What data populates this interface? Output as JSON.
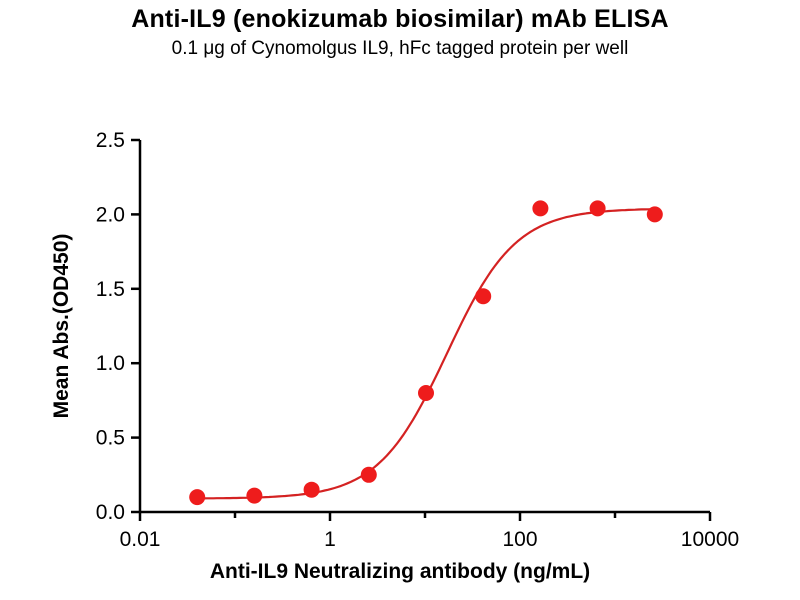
{
  "header": {
    "title": "Anti-IL9 (enokizumab biosimilar) mAb ELISA",
    "subtitle": "0.1 μg of Cynomolgus IL9, hFc tagged protein per well"
  },
  "chart_data": {
    "type": "scatter",
    "title": "Anti-IL9 (enokizumab biosimilar) mAb ELISA",
    "subtitle": "0.1 μg of Cynomolgus IL9, hFc tagged protein per well",
    "xlabel": "Anti-IL9 Neutralizing antibody (ng/mL)",
    "ylabel": "Mean Abs.(OD450)",
    "x_scale": "log10",
    "xlim": [
      0.01,
      10000
    ],
    "ylim": [
      0.0,
      2.5
    ],
    "grid": false,
    "legend": false,
    "x": [
      0.04,
      0.16,
      0.64,
      2.56,
      10.24,
      40.96,
      163.84,
      655.36,
      2621.44
    ],
    "y": [
      0.1,
      0.11,
      0.15,
      0.25,
      0.8,
      1.45,
      2.04,
      2.04,
      2.0
    ],
    "fit": {
      "model": "4PL",
      "bottom": 0.09,
      "top": 2.04,
      "ec50": 17.0,
      "hill": 1.2
    },
    "x_ticks_labeled": [
      0.01,
      1,
      100,
      10000
    ],
    "x_tick_labels": [
      "0.01",
      "1",
      "100",
      "10000"
    ],
    "y_ticks": [
      0.0,
      0.5,
      1.0,
      1.5,
      2.0,
      2.5
    ],
    "y_tick_labels": [
      "0.0",
      "0.5",
      "1.0",
      "1.5",
      "2.0",
      "2.5"
    ],
    "marker_color": "#ee1c1c",
    "curve_color": "#d42222",
    "axis_color": "#000000"
  }
}
